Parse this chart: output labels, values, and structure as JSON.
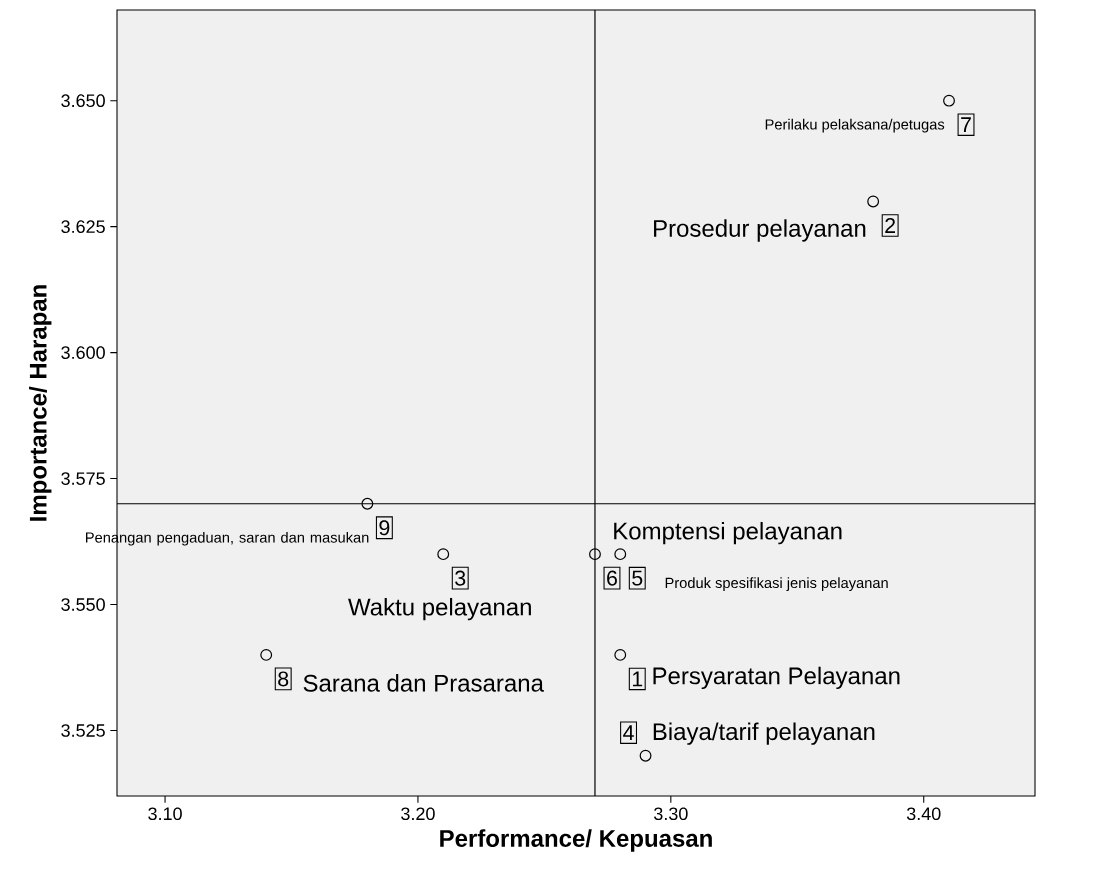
{
  "chart_data": {
    "type": "scatter",
    "xlabel": "Performance/ Kepuasan",
    "ylabel": "Importance/ Harapan",
    "x": [
      3.28,
      3.38,
      3.21,
      3.29,
      3.28,
      3.27,
      3.41,
      3.14,
      3.18
    ],
    "series": [
      {
        "color": "#000000",
        "values": [
          3.54,
          3.63,
          3.56,
          3.52,
          3.56,
          3.56,
          3.65,
          3.54,
          3.57
        ]
      }
    ],
    "value_labels": [
      "1",
      "2",
      "3",
      "4",
      "5",
      "6",
      "7",
      "8",
      "9"
    ],
    "marker": "circle",
    "grid": false,
    "xlim": [
      3.081,
      3.444
    ],
    "ylim": [
      3.512,
      3.668
    ],
    "xticks": [
      {
        "value": 3.1,
        "label": "3.10"
      },
      {
        "value": 3.2,
        "label": "3.20"
      },
      {
        "value": 3.3,
        "label": "3.30"
      },
      {
        "value": 3.4,
        "label": "3.40"
      }
    ],
    "yticks": [
      {
        "value": 3.525,
        "label": "3.525"
      },
      {
        "value": 3.55,
        "label": "3.550"
      },
      {
        "value": 3.575,
        "label": "3.575"
      },
      {
        "value": 3.6,
        "label": "3.600"
      },
      {
        "value": 3.625,
        "label": "3.625"
      },
      {
        "value": 3.65,
        "label": "3.650"
      }
    ],
    "ref_lines": [
      {
        "axis": "x",
        "value": 3.27,
        "color": "#000000"
      },
      {
        "axis": "y",
        "value": 3.57,
        "color": "#000000"
      }
    ],
    "annotations": [
      {
        "text": "Persyaratan Pelayanan",
        "x": 3.28,
        "y": 3.54
      },
      {
        "text": "Prosedur pelayanan",
        "x": 3.38,
        "y": 3.63
      },
      {
        "text": "Waktu pelayanan",
        "x": 3.21,
        "y": 3.56
      },
      {
        "text": "Biaya/tarif pelayanan",
        "x": 3.29,
        "y": 3.52
      },
      "Produk spesifikasi jenis pelayanan",
      {
        "text": "Komptensi pelayanan",
        "x": 3.27,
        "y": 3.56
      },
      {
        "text": "Perilaku pelaksana/petugas",
        "x": 3.41,
        "y": 3.65
      },
      {
        "text": "Sarana dan Prasarana",
        "x": 3.14,
        "y": 3.54
      },
      "Penangan pengaduan, saran dan masukan"
    ]
  }
}
